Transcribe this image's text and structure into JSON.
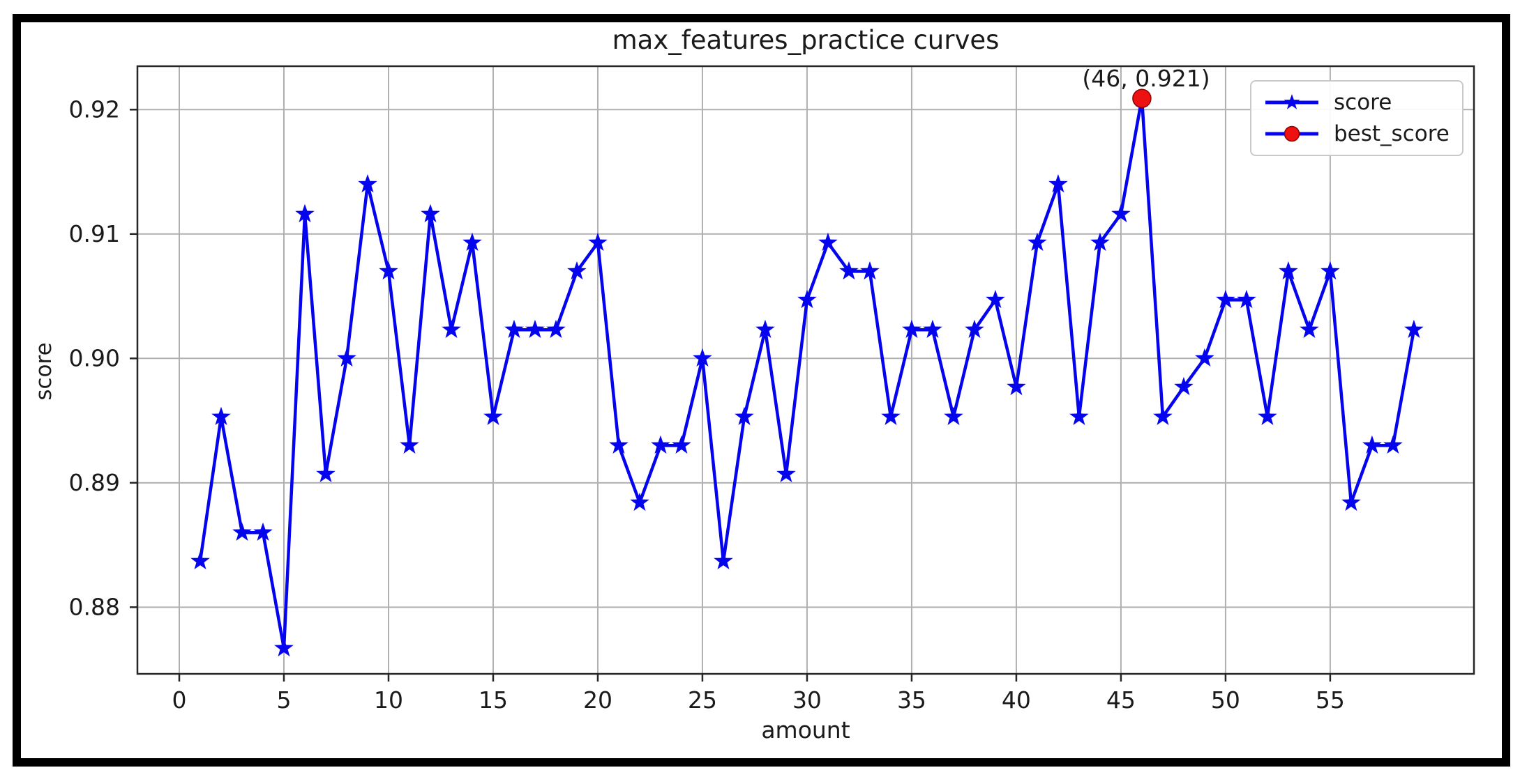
{
  "figure": {
    "title": "max_features_practice curves",
    "xlabel": "amount",
    "ylabel": "score"
  },
  "colors": {
    "line": "#0404ee",
    "marker": "#0404ee",
    "best_point": "#ee1111",
    "grid": "#b0b0b0",
    "spine": "#262626",
    "text": "#1a1a1a",
    "frame": "#000000"
  },
  "chart_data": {
    "type": "line",
    "title": "max_features_practice curves",
    "xlabel": "amount",
    "ylabel": "score",
    "grid": true,
    "legend_position": "upper right",
    "xlim": [
      -2,
      61.87
    ],
    "ylim": [
      0.87464,
      0.92349
    ],
    "xticks": [
      0,
      5,
      10,
      15,
      20,
      25,
      30,
      35,
      40,
      45,
      50,
      55
    ],
    "yticks": [
      0.88,
      0.89,
      0.9,
      0.91,
      0.92
    ],
    "x": [
      1,
      2,
      3,
      4,
      5,
      6,
      7,
      8,
      9,
      10,
      11,
      12,
      13,
      14,
      15,
      16,
      17,
      18,
      19,
      20,
      21,
      22,
      23,
      24,
      25,
      26,
      27,
      28,
      29,
      30,
      31,
      32,
      33,
      34,
      35,
      36,
      37,
      38,
      39,
      40,
      41,
      42,
      43,
      44,
      45,
      46,
      47,
      48,
      49,
      50,
      51,
      52,
      53,
      54,
      55,
      56,
      57,
      58,
      59
    ],
    "series": [
      {
        "name": "score",
        "values": [
          0.8837,
          0.8953,
          0.886,
          0.886,
          0.8767,
          0.9116,
          0.8907,
          0.9,
          0.914,
          0.907,
          0.893,
          0.9116,
          0.9023,
          0.9093,
          0.8953,
          0.9023,
          0.9023,
          0.9023,
          0.907,
          0.9093,
          0.893,
          0.8884,
          0.893,
          0.893,
          0.9,
          0.8837,
          0.8953,
          0.9023,
          0.8907,
          0.9047,
          0.9093,
          0.907,
          0.907,
          0.8953,
          0.9023,
          0.9023,
          0.8953,
          0.9023,
          0.9047,
          0.8977,
          0.9093,
          0.914,
          0.8953,
          0.9093,
          0.9116,
          0.9209,
          0.8953,
          0.8977,
          0.9,
          0.9047,
          0.9047,
          0.8953,
          0.907,
          0.9023,
          0.907,
          0.8884,
          0.893,
          0.893,
          0.9023
        ]
      }
    ],
    "best_score": {
      "name": "best_score",
      "x": 46,
      "y": 0.9209,
      "label": "(46, 0.921)"
    },
    "legend": [
      {
        "label": "score",
        "marker": "blue-star"
      },
      {
        "label": "best_score",
        "marker": "red-circle"
      }
    ]
  }
}
